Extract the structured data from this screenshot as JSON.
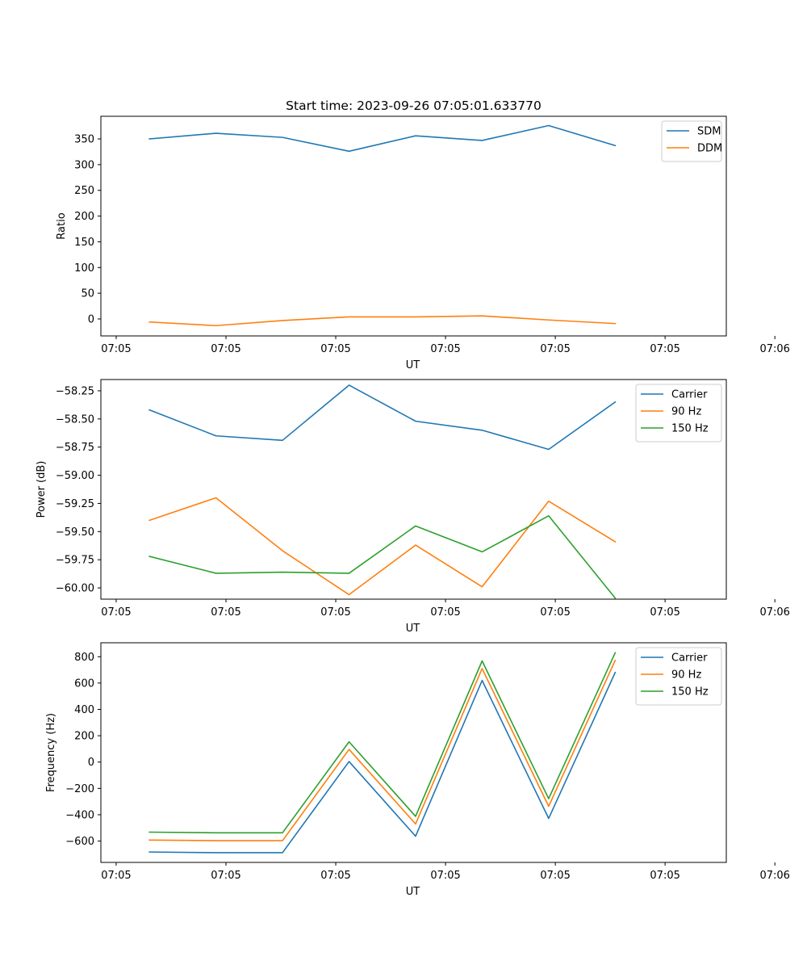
{
  "chart_data": [
    {
      "type": "line",
      "title": "Start time: 2023-09-26 07:05:01.633770",
      "xlabel": "UT",
      "ylabel": "Ratio",
      "xtick_labels": [
        "07:05",
        "07:05",
        "07:05",
        "07:05",
        "07:05",
        "07:05",
        "07:06"
      ],
      "xlim": [
        -0.23,
        9.17
      ],
      "ylim": [
        -33,
        394
      ],
      "yticks": [
        0,
        50,
        100,
        150,
        200,
        250,
        300,
        350
      ],
      "ytick_labels": [
        "0",
        "50",
        "100",
        "150",
        "200",
        "250",
        "300",
        "350"
      ],
      "x": [
        0.5,
        1.5,
        2.5,
        3.5,
        4.5,
        5.5,
        6.5,
        7.5
      ],
      "legend_position": "upper right",
      "series": [
        {
          "name": "SDM",
          "color": "#1f77b4",
          "values": [
            350,
            361,
            353,
            326,
            356,
            347,
            376,
            337
          ]
        },
        {
          "name": "DDM",
          "color": "#ff7f0e",
          "values": [
            -6,
            -13,
            -3,
            4,
            4,
            6,
            -2,
            -9
          ]
        }
      ]
    },
    {
      "type": "line",
      "title": "",
      "xlabel": "UT",
      "ylabel": "Power (dB)",
      "xtick_labels": [
        "07:05",
        "07:05",
        "07:05",
        "07:05",
        "07:05",
        "07:05",
        "07:06"
      ],
      "xlim": [
        -0.23,
        9.17
      ],
      "ylim": [
        -60.1,
        -58.15
      ],
      "yticks": [
        -60.0,
        -59.75,
        -59.5,
        -59.25,
        -59.0,
        -58.75,
        -58.5,
        -58.25
      ],
      "ytick_labels": [
        "−60.00",
        "−59.75",
        "−59.50",
        "−59.25",
        "−59.00",
        "−58.75",
        "−58.50",
        "−58.25"
      ],
      "x": [
        0.5,
        1.5,
        2.5,
        3.5,
        4.5,
        5.5,
        6.5,
        7.5
      ],
      "legend_position": "upper right",
      "series": [
        {
          "name": "Carrier",
          "color": "#1f77b4",
          "values": [
            -58.42,
            -58.65,
            -58.69,
            -58.2,
            -58.52,
            -58.6,
            -58.77,
            -58.35
          ]
        },
        {
          "name": "90 Hz",
          "color": "#ff7f0e",
          "values": [
            -59.4,
            -59.2,
            -59.67,
            -60.06,
            -59.62,
            -59.99,
            -59.23,
            -59.59
          ]
        },
        {
          "name": "150 Hz",
          "color": "#2ca02c",
          "values": [
            -59.72,
            -59.87,
            -59.86,
            -59.87,
            -59.45,
            -59.68,
            -59.36,
            -60.09
          ]
        }
      ]
    },
    {
      "type": "line",
      "title": "",
      "xlabel": "UT",
      "ylabel": "Frequency (Hz)",
      "xtick_labels": [
        "07:05",
        "07:05",
        "07:05",
        "07:05",
        "07:05",
        "07:05",
        "07:06"
      ],
      "xlim": [
        -0.23,
        9.17
      ],
      "ylim": [
        -762,
        906
      ],
      "yticks": [
        -600,
        -400,
        -200,
        0,
        200,
        400,
        600,
        800
      ],
      "ytick_labels": [
        "−600",
        "−400",
        "−200",
        "0",
        "200",
        "400",
        "600",
        "800"
      ],
      "x": [
        0.5,
        1.5,
        2.5,
        3.5,
        4.5,
        5.5,
        6.5,
        7.5
      ],
      "legend_position": "upper right",
      "series": [
        {
          "name": "Carrier",
          "color": "#1f77b4",
          "values": [
            -683,
            -688,
            -688,
            4,
            -563,
            620,
            -428,
            680
          ]
        },
        {
          "name": "90 Hz",
          "color": "#ff7f0e",
          "values": [
            -592,
            -597,
            -597,
            96,
            -470,
            710,
            -336,
            772
          ]
        },
        {
          "name": "150 Hz",
          "color": "#2ca02c",
          "values": [
            -532,
            -537,
            -537,
            154,
            -412,
            768,
            -278,
            830
          ]
        }
      ]
    }
  ]
}
